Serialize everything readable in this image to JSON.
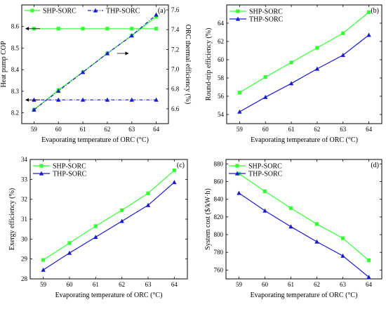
{
  "colors": {
    "shp": "#33ff33",
    "thp": "#1a1acc",
    "axis": "#000000"
  },
  "chart_data": [
    {
      "id": "a",
      "type": "line",
      "panel_label": "(a)",
      "title": "",
      "xlabel": "Evaporating temperature of ORC (°C)",
      "ylabel": "Heat pump COP",
      "y2label": "ORC thermal efficiency (%)",
      "x": [
        59,
        60,
        61,
        62,
        63,
        64
      ],
      "xticks": [
        59,
        60,
        61,
        62,
        63,
        64
      ],
      "xlim": [
        58.5,
        64.5
      ],
      "ylim": [
        8.15,
        8.7
      ],
      "yticks": [
        8.2,
        8.3,
        8.4,
        8.5,
        8.6
      ],
      "ytick_labels": [
        "8.2",
        "8.3",
        "8.4",
        "8.5",
        "8.6"
      ],
      "y2lim": [
        6.45,
        7.65
      ],
      "y2ticks": [
        6.6,
        6.8,
        7.0,
        7.2,
        7.4,
        7.6
      ],
      "y2tick_labels": [
        "6.6",
        "6.8",
        "7.0",
        "7.2",
        "7.4",
        "7.6"
      ],
      "legend_position": "top-left",
      "series": [
        {
          "name": "SHP-SORC",
          "axis": "left",
          "style": "solid",
          "marker": "square",
          "values": [
            8.59,
            8.59,
            8.59,
            8.59,
            8.59,
            8.59
          ]
        },
        {
          "name": "THP-SORC",
          "axis": "left",
          "style": "dashdot",
          "marker": "triangle",
          "values": [
            8.26,
            8.26,
            8.26,
            8.26,
            8.26,
            8.26
          ]
        },
        {
          "name": "",
          "axis": "right",
          "style": "solid",
          "marker": "square",
          "values": [
            6.59,
            6.79,
            6.97,
            7.16,
            7.34,
            7.53
          ]
        },
        {
          "name": "",
          "axis": "right",
          "style": "dashdot",
          "marker": "triangle",
          "values": [
            6.59,
            6.78,
            6.97,
            7.16,
            7.34,
            7.55
          ]
        }
      ]
    },
    {
      "id": "b",
      "type": "line",
      "panel_label": "(b)",
      "title": "",
      "xlabel": "Evaporating temperature of ORC (°C)",
      "ylabel": "Round-trip efficiency (%)",
      "x": [
        59,
        60,
        61,
        62,
        63,
        64
      ],
      "xticks": [
        59,
        60,
        61,
        62,
        63,
        64
      ],
      "xlim": [
        58.5,
        64.5
      ],
      "ylim": [
        53,
        66
      ],
      "yticks": [
        54,
        56,
        58,
        60,
        62,
        64
      ],
      "ytick_labels": [
        "54",
        "56",
        "58",
        "60",
        "62",
        "64"
      ],
      "legend_position": "top-left",
      "series": [
        {
          "name": "SHP-SORC",
          "marker": "square",
          "values": [
            56.4,
            58.1,
            59.7,
            61.3,
            62.9,
            65.2
          ]
        },
        {
          "name": "THP-SORC",
          "marker": "triangle",
          "values": [
            54.3,
            55.9,
            57.4,
            59.0,
            60.5,
            62.7
          ]
        }
      ]
    },
    {
      "id": "c",
      "type": "line",
      "panel_label": "(c)",
      "title": "",
      "xlabel": "Evaporating temperature of ORC (°C)",
      "ylabel": "Exergy efficiency (%)",
      "x": [
        59,
        60,
        61,
        62,
        63,
        64
      ],
      "xticks": [
        59,
        60,
        61,
        62,
        63,
        64
      ],
      "xlim": [
        58.5,
        64.5
      ],
      "ylim": [
        28,
        34
      ],
      "yticks": [
        28,
        29,
        30,
        31,
        32,
        33,
        34
      ],
      "ytick_labels": [
        "28",
        "29",
        "30",
        "31",
        "32",
        "33",
        "34"
      ],
      "legend_position": "top-left",
      "series": [
        {
          "name": "SHP-SORC",
          "marker": "square",
          "values": [
            28.95,
            29.8,
            30.65,
            31.45,
            32.3,
            33.45
          ]
        },
        {
          "name": "THP-SORC",
          "marker": "triangle",
          "values": [
            28.45,
            29.3,
            30.1,
            30.9,
            31.7,
            32.85
          ]
        }
      ]
    },
    {
      "id": "d",
      "type": "line",
      "panel_label": "(d)",
      "title": "",
      "xlabel": "Evaporating temperature of ORC (°C)",
      "ylabel": "System cost ($/kW·h)",
      "x": [
        59,
        60,
        61,
        62,
        63,
        64
      ],
      "xticks": [
        59,
        60,
        61,
        62,
        63,
        64
      ],
      "xlim": [
        58.5,
        64.5
      ],
      "ylim": [
        750,
        885
      ],
      "yticks": [
        760,
        780,
        800,
        820,
        840,
        860,
        880
      ],
      "ytick_labels": [
        "760",
        "780",
        "800",
        "820",
        "840",
        "860",
        "880"
      ],
      "legend_position": "top-left",
      "series": [
        {
          "name": "SHP-SORC",
          "marker": "square",
          "values": [
            869,
            849,
            830,
            812,
            796,
            771
          ]
        },
        {
          "name": "THP-SORC",
          "marker": "triangle",
          "values": [
            847,
            827,
            809,
            792,
            776,
            752
          ]
        }
      ]
    }
  ]
}
